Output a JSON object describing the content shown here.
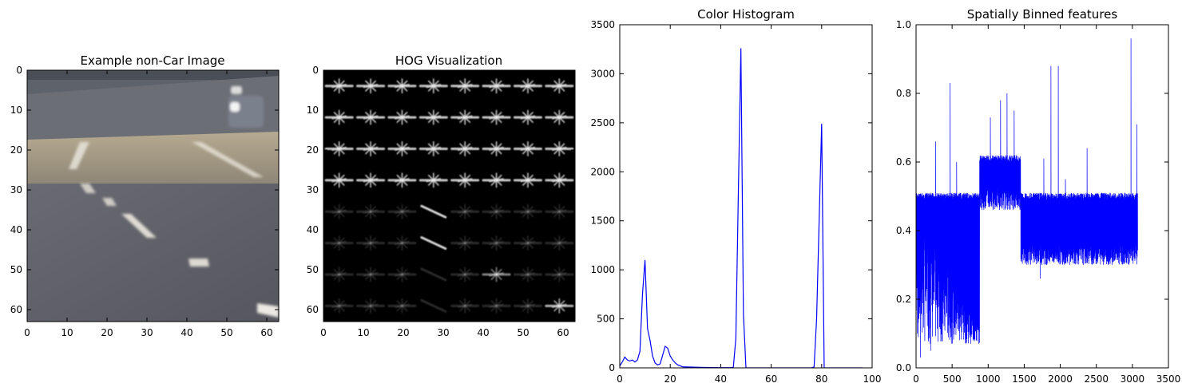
{
  "figure": {
    "panels": [
      {
        "key": "example",
        "title": "Example non-Car Image"
      },
      {
        "key": "hog",
        "title": "HOG Visualization"
      },
      {
        "key": "hist",
        "title": "Color Histogram"
      },
      {
        "key": "spatial",
        "title": "Spatially Binned features"
      }
    ]
  },
  "chart_data": [
    {
      "type": "image",
      "title": "Example non-Car Image",
      "description_colors": {
        "sky_band": "#5a5e66",
        "road_light": "#b8ac92",
        "road_dark": "#5c5e68",
        "lane_mark": "#e6e2d8"
      },
      "xlim": [
        0,
        63
      ],
      "ylim": [
        63,
        0
      ],
      "xticks": [
        0,
        10,
        20,
        30,
        40,
        50,
        60
      ],
      "yticks": [
        0,
        10,
        20,
        30,
        40,
        50,
        60
      ]
    },
    {
      "type": "image",
      "title": "HOG Visualization",
      "cells": 8,
      "xlim": [
        0,
        63
      ],
      "ylim": [
        63,
        0
      ],
      "xticks": [
        0,
        10,
        20,
        30,
        40,
        50,
        60
      ],
      "yticks": [
        0,
        10,
        20,
        30,
        40,
        50,
        60
      ]
    },
    {
      "type": "line",
      "title": "Color Histogram",
      "color": "#0000ff",
      "xlim": [
        0,
        100
      ],
      "ylim": [
        0,
        3500
      ],
      "xticks": [
        0,
        20,
        40,
        60,
        80,
        100
      ],
      "yticks": [
        0,
        500,
        1000,
        1500,
        2000,
        2500,
        3000,
        3500
      ],
      "x": [
        0,
        1,
        2,
        3,
        4,
        5,
        6,
        7,
        8,
        9,
        10,
        11,
        12,
        13,
        14,
        15,
        16,
        17,
        18,
        19,
        20,
        21,
        22,
        23,
        24,
        25,
        28,
        32,
        36,
        40,
        44,
        45,
        46,
        47,
        48,
        49,
        50,
        51,
        52,
        60,
        70,
        76,
        77,
        78,
        79,
        80,
        81,
        82,
        83,
        90,
        96
      ],
      "y": [
        20,
        60,
        110,
        80,
        70,
        80,
        60,
        80,
        170,
        750,
        1100,
        400,
        280,
        120,
        50,
        30,
        40,
        130,
        220,
        200,
        120,
        80,
        50,
        30,
        20,
        10,
        8,
        5,
        3,
        2,
        2,
        5,
        300,
        1800,
        3260,
        550,
        0,
        0,
        0,
        0,
        0,
        0,
        10,
        500,
        1500,
        2490,
        0,
        0,
        0,
        0,
        0
      ]
    },
    {
      "type": "line",
      "title": "Spatially Binned features",
      "color": "#0000ff",
      "xlim": [
        0,
        3500
      ],
      "ylim": [
        0,
        1.0
      ],
      "xticks": [
        0,
        500,
        1000,
        1500,
        2000,
        2500,
        3000,
        3500
      ],
      "yticks": [
        0.0,
        0.2,
        0.4,
        0.6,
        0.8,
        1.0
      ],
      "n_points": 3072,
      "bands": [
        {
          "x_start": 0,
          "x_end": 880,
          "upper": 0.51,
          "lower": 0.07
        },
        {
          "x_start": 880,
          "x_end": 1450,
          "upper": 0.62,
          "lower": 0.46
        },
        {
          "x_start": 1450,
          "x_end": 3072,
          "upper": 0.51,
          "lower": 0.3
        }
      ],
      "spikes": [
        {
          "x": 270,
          "y": 0.66
        },
        {
          "x": 470,
          "y": 0.83
        },
        {
          "x": 560,
          "y": 0.6
        },
        {
          "x": 1030,
          "y": 0.73
        },
        {
          "x": 1170,
          "y": 0.78
        },
        {
          "x": 1260,
          "y": 0.8
        },
        {
          "x": 1360,
          "y": 0.75
        },
        {
          "x": 1770,
          "y": 0.61
        },
        {
          "x": 1870,
          "y": 0.88
        },
        {
          "x": 1970,
          "y": 0.88
        },
        {
          "x": 2070,
          "y": 0.55
        },
        {
          "x": 2370,
          "y": 0.64
        },
        {
          "x": 2980,
          "y": 0.96
        },
        {
          "x": 3060,
          "y": 0.71
        }
      ],
      "dips": [
        {
          "x": 60,
          "y": 0.03
        },
        {
          "x": 200,
          "y": 0.05
        },
        {
          "x": 380,
          "y": 0.19
        },
        {
          "x": 760,
          "y": 0.19
        },
        {
          "x": 1720,
          "y": 0.26
        }
      ]
    }
  ]
}
